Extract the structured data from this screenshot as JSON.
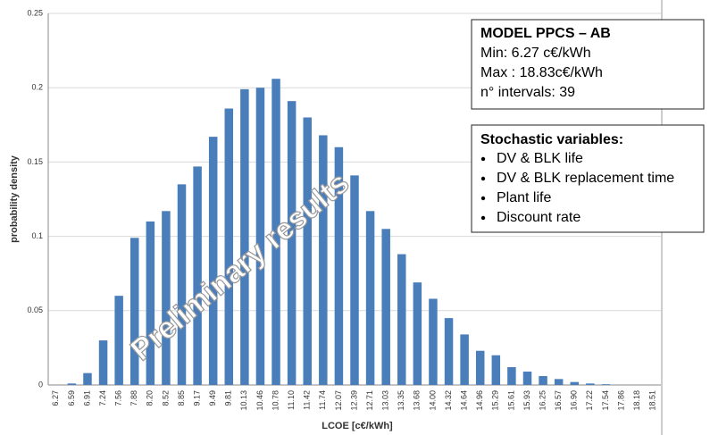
{
  "chart_data": {
    "type": "bar",
    "xlabel": "LCOE [c€/kWh]",
    "ylabel": "probability density",
    "categories": [
      "6.27",
      "6.59",
      "6.91",
      "7.24",
      "7.56",
      "7.88",
      "8.20",
      "8.52",
      "8.85",
      "9.17",
      "9.49",
      "9.81",
      "10.13",
      "10.46",
      "10.78",
      "11.10",
      "11.42",
      "11.74",
      "12.07",
      "12.39",
      "12.71",
      "13.03",
      "13.35",
      "13.68",
      "14.00",
      "14.32",
      "14.64",
      "14.96",
      "15.29",
      "15.61",
      "15.93",
      "16.25",
      "16.57",
      "16.90",
      "17.22",
      "17.54",
      "17.86",
      "18.18",
      "18.51"
    ],
    "values": [
      0,
      0.001,
      0.008,
      0.03,
      0.06,
      0.099,
      0.11,
      0.117,
      0.135,
      0.147,
      0.167,
      0.186,
      0.199,
      0.2,
      0.206,
      0.191,
      0.18,
      0.168,
      0.16,
      0.141,
      0.117,
      0.105,
      0.088,
      0.069,
      0.058,
      0.045,
      0.034,
      0.023,
      0.02,
      0.012,
      0.009,
      0.006,
      0.004,
      0.002,
      0.001,
      0.0005,
      0,
      0,
      0
    ],
    "color": "#4a7ebb",
    "ylim": [
      0,
      0.25
    ],
    "yticks": [
      0,
      0.05,
      0.1,
      0.15,
      0.2,
      0.25
    ],
    "grid": true,
    "watermark": "Preliminary results",
    "info_box": {
      "title": "MODEL PPCS – AB",
      "lines": [
        "Min: 6.27 c€/kWh",
        "Max : 18.83c€/kWh",
        "n° intervals: 39"
      ]
    },
    "variables_box": {
      "title": "Stochastic variables:",
      "items": [
        "DV & BLK life",
        "DV & BLK replacement time",
        "Plant life",
        "Discount rate"
      ]
    }
  }
}
